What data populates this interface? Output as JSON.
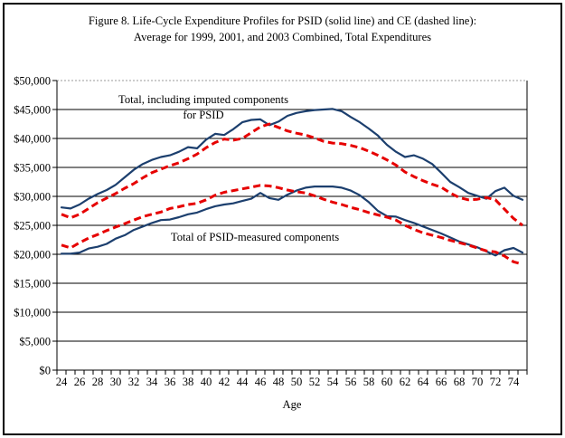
{
  "figure": {
    "title_line1": "Figure 8. Life-Cycle Expenditure Profiles for PSID (solid line) and CE (dashed line):",
    "title_line2": "Average for 1999, 2001, and 2003 Combined, Total Expenditures",
    "annotation_upper_line1": "Total, including imputed components",
    "annotation_upper_line2": "for PSID",
    "annotation_lower": "Total of PSID-measured components"
  },
  "chart_data": {
    "type": "line",
    "title": "Figure 8. Life-Cycle Expenditure Profiles for PSID (solid line) and CE (dashed line): Average for 1999, 2001, and 2003 Combined, Total Expenditures",
    "xlabel": "Age",
    "ylabel": "",
    "ylim": [
      0,
      50000
    ],
    "ytick_step": 5000,
    "grid": true,
    "legend_position": "none",
    "colors": {
      "psid_solid": "#1c3f6e",
      "ce_dashed": "#e60000",
      "gridline": "#000000",
      "top_dotted": "#999999"
    },
    "ytick_labels": [
      "$0",
      "$5,000",
      "$10,000",
      "$15,000",
      "$20,000",
      "$25,000",
      "$30,000",
      "$35,000",
      "$40,000",
      "$45,000",
      "$50,000"
    ],
    "xtick_labels": [
      "24",
      "26",
      "28",
      "30",
      "32",
      "34",
      "36",
      "38",
      "40",
      "42",
      "44",
      "46",
      "48",
      "50",
      "52",
      "54",
      "56",
      "58",
      "60",
      "62",
      "64",
      "66",
      "68",
      "70",
      "72",
      "74"
    ],
    "x": [
      24,
      25,
      26,
      27,
      28,
      29,
      30,
      31,
      32,
      33,
      34,
      35,
      36,
      37,
      38,
      39,
      40,
      41,
      42,
      43,
      44,
      45,
      46,
      47,
      48,
      49,
      50,
      51,
      52,
      53,
      54,
      55,
      56,
      57,
      58,
      59,
      60,
      61,
      62,
      63,
      64,
      65,
      66,
      67,
      68,
      69,
      70,
      71,
      72,
      73,
      74,
      75
    ],
    "series": [
      {
        "name": "PSID total including imputed components",
        "line": "solid",
        "color": "#1c3f6e",
        "values": [
          28100,
          27900,
          28600,
          29600,
          30400,
          31100,
          32000,
          33300,
          34600,
          35600,
          36300,
          36800,
          37100,
          37700,
          38500,
          38300,
          39800,
          40800,
          40600,
          41600,
          42800,
          43200,
          43300,
          42300,
          42900,
          43900,
          44400,
          44700,
          44900,
          45000,
          45100,
          44700,
          43700,
          42800,
          41700,
          40500,
          38900,
          37700,
          36800,
          37100,
          36500,
          35600,
          34100,
          32500,
          31600,
          30600,
          30100,
          29600,
          30900,
          31500,
          30100,
          29400
        ]
      },
      {
        "name": "CE total expenditures",
        "line": "dashed",
        "color": "#e60000",
        "values": [
          26900,
          26300,
          26900,
          27900,
          28900,
          29700,
          30500,
          31400,
          32200,
          33200,
          34100,
          34700,
          35300,
          35800,
          36500,
          37300,
          38400,
          39300,
          39900,
          39700,
          40000,
          41000,
          42000,
          42500,
          41900,
          41300,
          40900,
          40600,
          40100,
          39500,
          39200,
          39100,
          38800,
          38400,
          37800,
          37100,
          36300,
          35400,
          34200,
          33400,
          32700,
          32100,
          31600,
          30600,
          29800,
          29400,
          29500,
          29800,
          29400,
          27800,
          26200,
          25000
        ]
      },
      {
        "name": "PSID-measured components total",
        "line": "solid",
        "color": "#1c3f6e",
        "values": [
          20100,
          20100,
          20300,
          21000,
          21300,
          21800,
          22700,
          23300,
          24200,
          24800,
          25400,
          25900,
          26000,
          26400,
          26900,
          27200,
          27800,
          28300,
          28600,
          28800,
          29200,
          29600,
          30600,
          29700,
          29400,
          30300,
          31000,
          31500,
          31700,
          31700,
          31700,
          31500,
          31000,
          30200,
          29000,
          27500,
          26600,
          26500,
          25900,
          25400,
          24800,
          24200,
          23600,
          22900,
          22200,
          21700,
          21200,
          20500,
          19800,
          20700,
          21100,
          20300
        ]
      },
      {
        "name": "CE comparable components",
        "line": "dashed",
        "color": "#e60000",
        "values": [
          21600,
          21100,
          22000,
          22800,
          23400,
          24100,
          24700,
          25300,
          25900,
          26500,
          26900,
          27300,
          27900,
          28200,
          28600,
          28800,
          29400,
          30200,
          30700,
          31000,
          31300,
          31600,
          31900,
          31800,
          31500,
          31100,
          30800,
          30600,
          30100,
          29500,
          29000,
          28600,
          28100,
          27700,
          27200,
          26800,
          26400,
          25900,
          25000,
          24300,
          23700,
          23300,
          22900,
          22400,
          22000,
          21600,
          21100,
          20600,
          20400,
          19700,
          18700,
          18300
        ]
      }
    ]
  }
}
